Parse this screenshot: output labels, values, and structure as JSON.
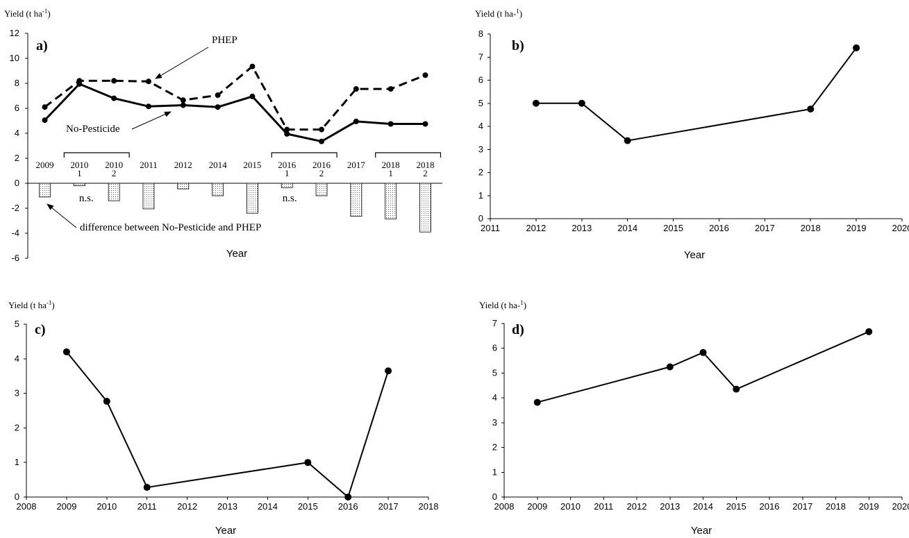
{
  "panels": [
    {
      "id": "a",
      "panel_label": "a)",
      "y_axis_title": "Yield (t ha",
      "y_axis_title_sup": "-1",
      "y_axis_title_end": ")",
      "x_axis_title": "Year"
    },
    {
      "id": "b",
      "panel_label": "b)",
      "y_axis_title": "Yield (t ha-",
      "y_axis_title_sup": "1",
      "y_axis_title_end": ")",
      "x_axis_title": "Year"
    },
    {
      "id": "c",
      "panel_label": "c)",
      "y_axis_title": "Yield (t ha",
      "y_axis_title_sup": "-1",
      "y_axis_title_end": ")",
      "x_axis_title": "Year"
    },
    {
      "id": "d",
      "panel_label": "d)",
      "y_axis_title": "Yield (t ha-",
      "y_axis_title_sup": "1",
      "y_axis_title_end": ")",
      "x_axis_title": "Year"
    }
  ],
  "chart_data": [
    {
      "panel": "a",
      "type": "line",
      "categories": [
        {
          "year": "2009",
          "season": ""
        },
        {
          "year": "2010",
          "season": "1"
        },
        {
          "year": "2010",
          "season": "2"
        },
        {
          "year": "2011",
          "season": ""
        },
        {
          "year": "2012",
          "season": ""
        },
        {
          "year": "2014",
          "season": ""
        },
        {
          "year": "2015",
          "season": ""
        },
        {
          "year": "2016",
          "season": "1"
        },
        {
          "year": "2016",
          "season": "2"
        },
        {
          "year": "2017",
          "season": ""
        },
        {
          "year": "2018",
          "season": "1"
        },
        {
          "year": "2018",
          "season": "2"
        }
      ],
      "series": [
        {
          "name": "PHEP",
          "style": "dashed",
          "values": [
            6.1,
            8.2,
            8.2,
            8.15,
            6.65,
            7.05,
            9.35,
            4.3,
            4.3,
            7.55,
            7.55,
            8.65
          ]
        },
        {
          "name": "No-Pesticide",
          "style": "solid",
          "values": [
            5.05,
            7.95,
            6.8,
            6.15,
            6.25,
            6.1,
            6.95,
            3.95,
            3.35,
            4.95,
            4.75,
            4.75
          ]
        },
        {
          "name": "difference between No-Pesticide and PHEP",
          "type": "bar",
          "values": [
            -1.1,
            -0.2,
            -1.4,
            -2.05,
            -0.45,
            -1.0,
            -2.4,
            -0.35,
            -1.0,
            -2.65,
            -2.85,
            -3.9
          ]
        }
      ],
      "annotations": [
        {
          "text": "PHEP",
          "target_index": 3,
          "target_series": 0
        },
        {
          "text": "No-Pesticide",
          "target_index": 6,
          "target_series": 1
        },
        {
          "text": "difference between No-Pesticide and PHEP",
          "target_index": 0,
          "target_series": 2
        },
        {
          "text": "n.s.",
          "target_index": 1
        },
        {
          "text": "n.s.",
          "target_index": 7
        }
      ],
      "season_brackets": [
        [
          1,
          2
        ],
        [
          7,
          8
        ],
        [
          10,
          11
        ]
      ],
      "ylim": [
        -6,
        12
      ],
      "yticks": [
        -6,
        -4,
        -2,
        0,
        2,
        4,
        6,
        8,
        10,
        12
      ],
      "grid": false,
      "legend": "none"
    },
    {
      "panel": "b",
      "type": "line",
      "x": [
        2012,
        2013,
        2014,
        2018,
        2019
      ],
      "values": [
        5.0,
        5.0,
        3.38,
        4.75,
        7.4
      ],
      "xlim": [
        2011,
        2020
      ],
      "xticks": [
        2011,
        2012,
        2013,
        2014,
        2015,
        2016,
        2017,
        2018,
        2019,
        2020
      ],
      "ylim": [
        0,
        8
      ],
      "yticks": [
        0,
        1,
        2,
        3,
        4,
        5,
        6,
        7,
        8
      ],
      "grid": false,
      "legend": "none"
    },
    {
      "panel": "c",
      "type": "line",
      "x": [
        2009,
        2010,
        2011,
        2015,
        2016,
        2017
      ],
      "values": [
        4.2,
        2.77,
        0.28,
        1.0,
        0.0,
        3.65
      ],
      "xlim": [
        2008,
        2018
      ],
      "xticks": [
        2008,
        2009,
        2010,
        2011,
        2012,
        2013,
        2014,
        2015,
        2016,
        2017,
        2018
      ],
      "ylim": [
        0,
        5
      ],
      "yticks": [
        0,
        1,
        2,
        3,
        4,
        5
      ],
      "grid": false,
      "legend": "none"
    },
    {
      "panel": "d",
      "type": "line",
      "x": [
        2009,
        2013,
        2014,
        2015,
        2019
      ],
      "values": [
        3.82,
        5.25,
        5.83,
        4.35,
        6.67
      ],
      "xlim": [
        2008,
        2020
      ],
      "xticks": [
        2008,
        2009,
        2010,
        2011,
        2012,
        2013,
        2014,
        2015,
        2016,
        2017,
        2018,
        2019,
        2020
      ],
      "ylim": [
        0,
        7
      ],
      "yticks": [
        0,
        1,
        2,
        3,
        4,
        5,
        6,
        7
      ],
      "grid": false,
      "legend": "none"
    }
  ]
}
